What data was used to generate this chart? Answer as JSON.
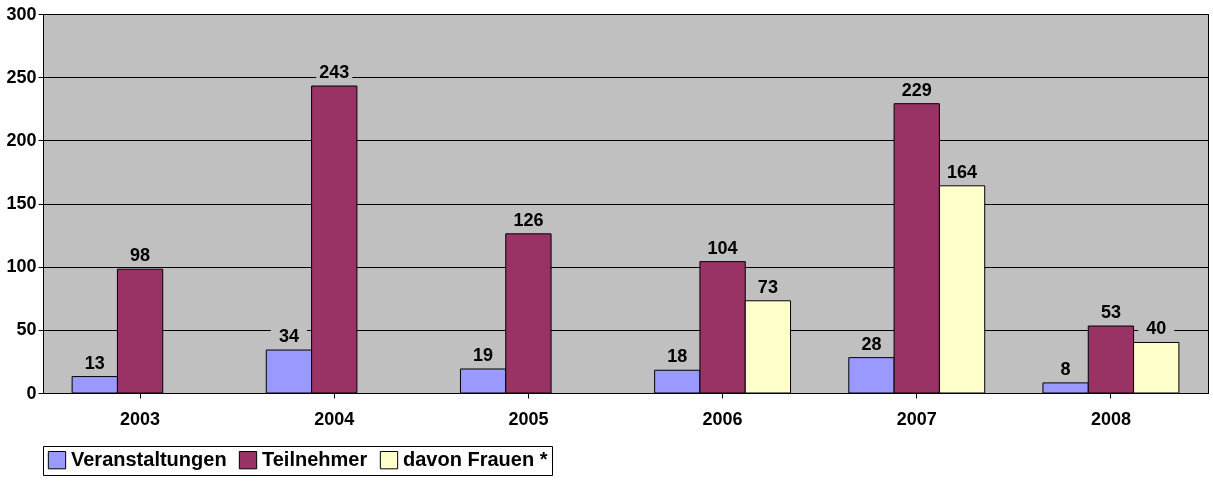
{
  "chart_data": {
    "type": "bar",
    "categories": [
      "2003",
      "2004",
      "2005",
      "2006",
      "2007",
      "2008"
    ],
    "series": [
      {
        "name": "Veranstaltungen",
        "color": "#9999ff",
        "values": [
          13,
          34,
          19,
          18,
          28,
          8
        ]
      },
      {
        "name": "Teilnehmer",
        "color": "#993366",
        "values": [
          98,
          243,
          126,
          104,
          229,
          53
        ]
      },
      {
        "name": "davon Frauen *",
        "color": "#ffffcc",
        "values": [
          null,
          null,
          null,
          73,
          164,
          40
        ]
      }
    ],
    "ylim": [
      0,
      300
    ],
    "yticks": [
      0,
      50,
      100,
      150,
      200,
      250,
      300
    ],
    "grid": "y",
    "legend": "bottom",
    "data_labels": true
  }
}
